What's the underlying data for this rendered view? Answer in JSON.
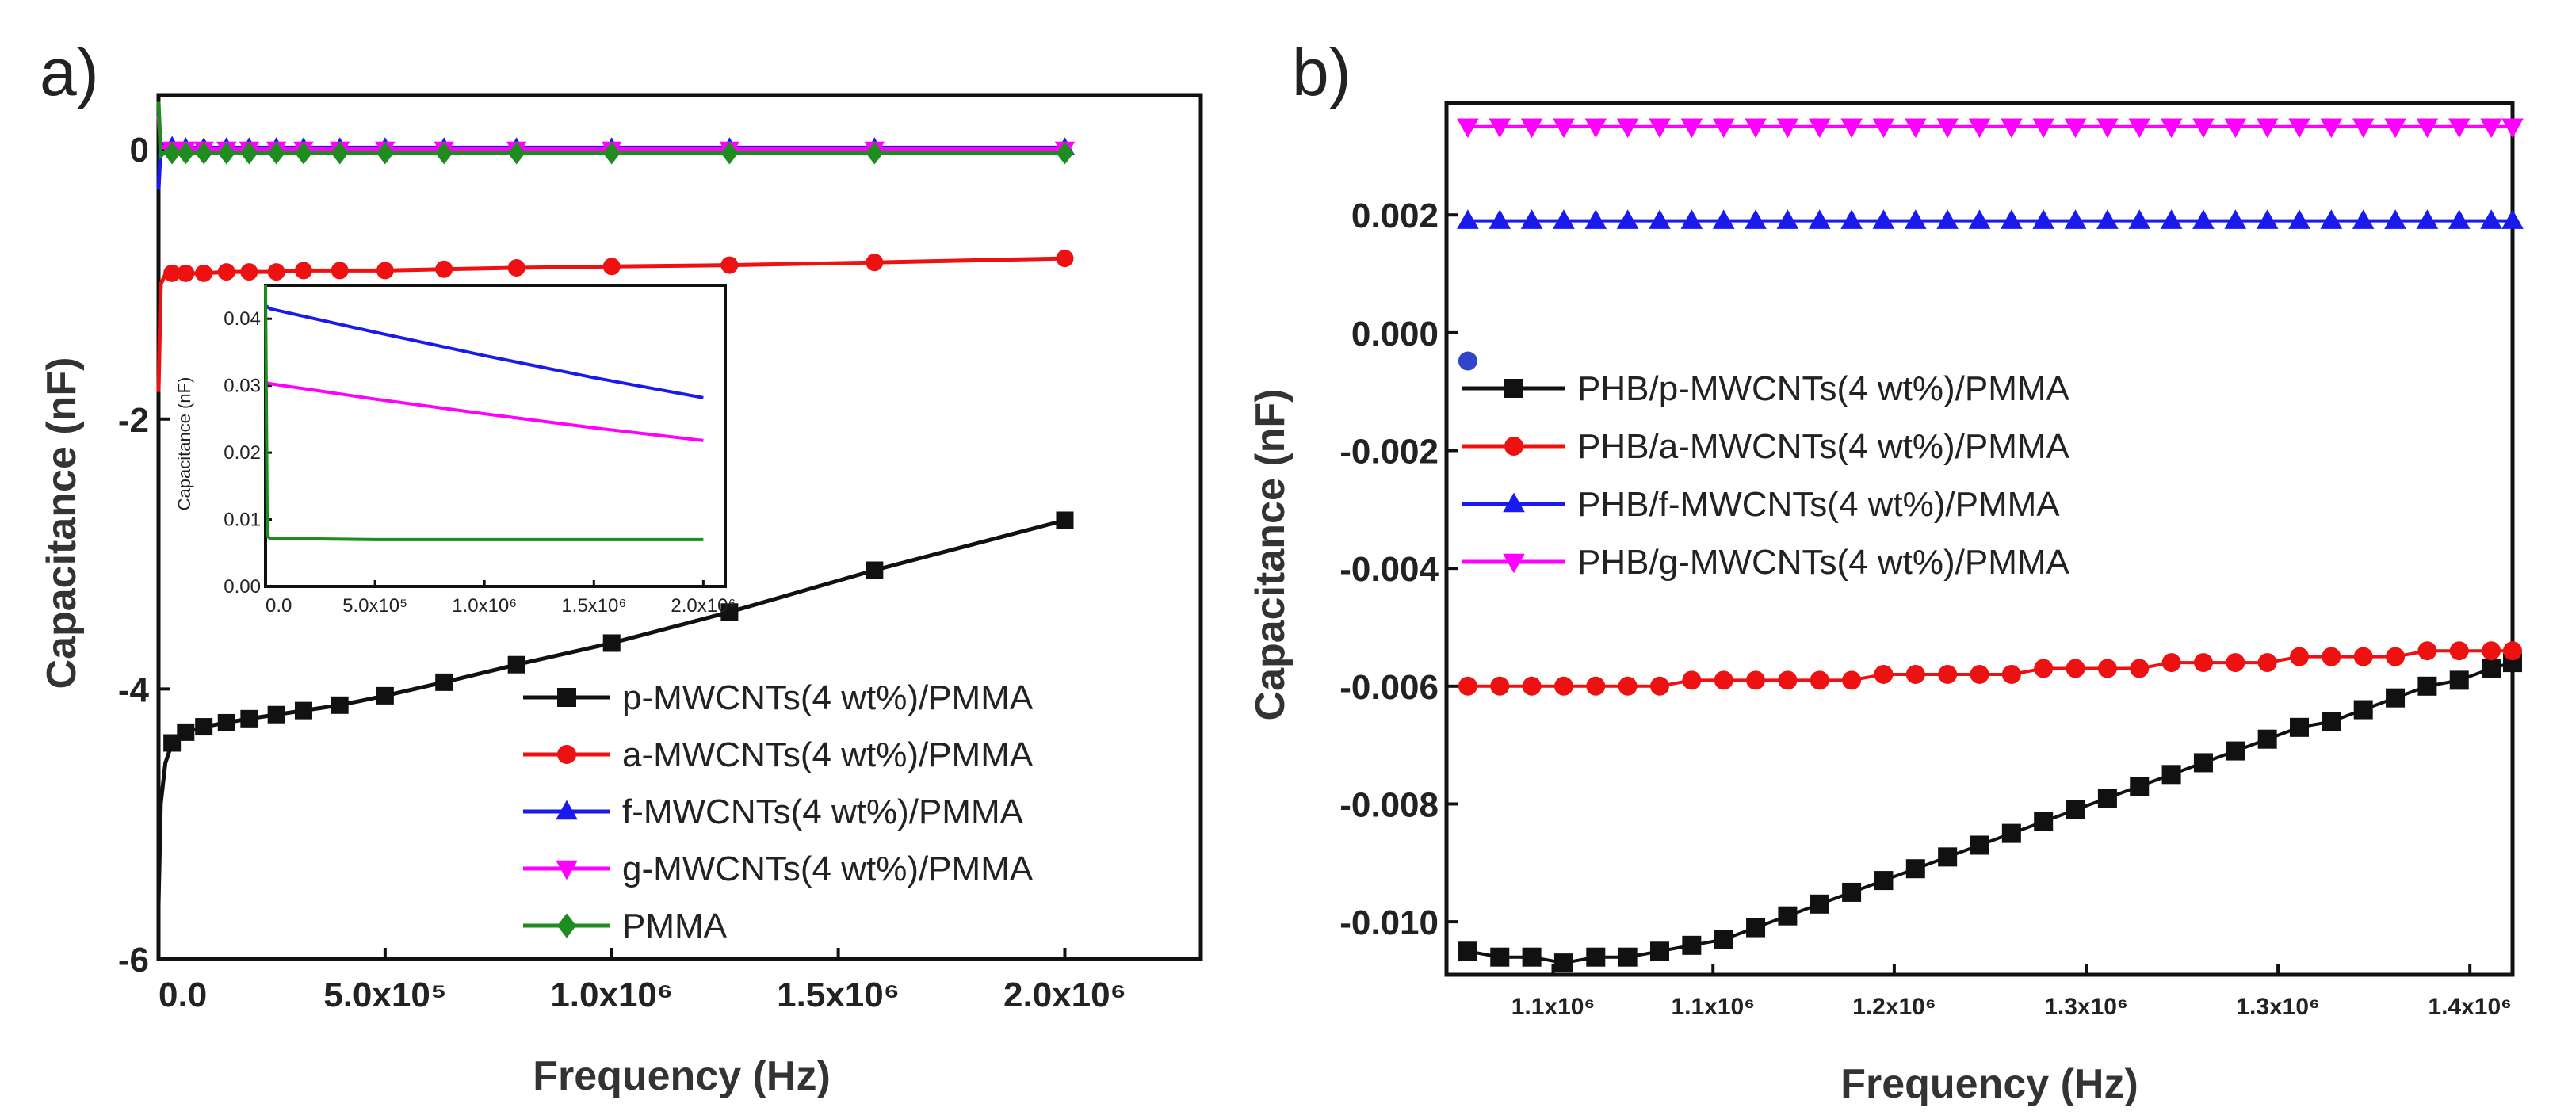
{
  "colors": {
    "black": "#111111",
    "red": "#ee1111",
    "blue": "#1a1aee",
    "magenta": "#ff00ff",
    "green": "#1f8c1f"
  },
  "chart_data": [
    {
      "panel": "a)",
      "type": "line",
      "xlabel": "Frequency (Hz)",
      "ylabel": "Capacitance (nF)",
      "xlim": [
        0,
        2300000
      ],
      "ylim": [
        -6,
        0.4
      ],
      "x_ticks": [
        {
          "value": 0,
          "label": "0.0"
        },
        {
          "value": 500000,
          "label": "5.0x10⁵"
        },
        {
          "value": 1000000,
          "label": "1.0x10⁶"
        },
        {
          "value": 1500000,
          "label": "1.5x10⁶"
        },
        {
          "value": 2000000,
          "label": "2.0x10⁶"
        }
      ],
      "y_ticks": [
        {
          "value": 0,
          "label": "0"
        },
        {
          "value": -2,
          "label": "-2"
        },
        {
          "value": -4,
          "label": "-4"
        },
        {
          "value": -6,
          "label": "-6"
        }
      ],
      "series": [
        {
          "name": "p-MWCNTs(4 wt%)/PMMA",
          "color": "#111111",
          "marker": "square",
          "x": [
            0,
            5000,
            15000,
            30000,
            60000,
            100000,
            150000,
            200000,
            260000,
            320000,
            400000,
            500000,
            630000,
            790000,
            1000000,
            1260000,
            1580000,
            2000000
          ],
          "y": [
            -5.6,
            -4.85,
            -4.55,
            -4.4,
            -4.32,
            -4.28,
            -4.25,
            -4.22,
            -4.19,
            -4.16,
            -4.12,
            -4.05,
            -3.95,
            -3.82,
            -3.66,
            -3.43,
            -3.12,
            -2.75
          ]
        },
        {
          "name": "a-MWCNTs(4 wt%)/PMMA",
          "color": "#ee1111",
          "marker": "circle",
          "x": [
            0,
            5000,
            15000,
            30000,
            60000,
            100000,
            150000,
            200000,
            260000,
            320000,
            400000,
            500000,
            630000,
            790000,
            1000000,
            1260000,
            1580000,
            2000000
          ],
          "y": [
            -1.8,
            -1.0,
            -0.93,
            -0.92,
            -0.92,
            -0.92,
            -0.91,
            -0.91,
            -0.91,
            -0.9,
            -0.9,
            -0.9,
            -0.89,
            -0.88,
            -0.87,
            -0.86,
            -0.84,
            -0.81
          ]
        },
        {
          "name": "f-MWCNTs(4 wt%)/PMMA",
          "color": "#1a1aee",
          "marker": "triangle-up",
          "x": [
            0,
            5000,
            15000,
            30000,
            60000,
            100000,
            150000,
            200000,
            260000,
            320000,
            400000,
            500000,
            630000,
            790000,
            1000000,
            1260000,
            1580000,
            2000000
          ],
          "y": [
            -0.3,
            0.04,
            0.03,
            0.02,
            0.01,
            0.01,
            0.01,
            0.01,
            0.01,
            0.01,
            0.01,
            0.01,
            0.01,
            0.01,
            0.01,
            0.01,
            0.01,
            0.01
          ]
        },
        {
          "name": "g-MWCNTs(4 wt%)/PMMA",
          "color": "#ff00ff",
          "marker": "triangle-down",
          "x": [
            0,
            5000,
            15000,
            30000,
            60000,
            100000,
            150000,
            200000,
            260000,
            320000,
            400000,
            500000,
            630000,
            790000,
            1000000,
            1260000,
            1580000,
            2000000
          ],
          "y": [
            0.25,
            0.02,
            0.01,
            0.0,
            0.0,
            0.0,
            0.0,
            0.0,
            0.0,
            0.0,
            0.0,
            0.0,
            0.0,
            0.0,
            0.0,
            0.0,
            0.0,
            0.0
          ]
        },
        {
          "name": "PMMA",
          "color": "#1f8c1f",
          "marker": "diamond",
          "x": [
            0,
            5000,
            15000,
            30000,
            60000,
            100000,
            150000,
            200000,
            260000,
            320000,
            400000,
            500000,
            630000,
            790000,
            1000000,
            1260000,
            1580000,
            2000000
          ],
          "y": [
            0.35,
            -0.05,
            -0.02,
            -0.03,
            -0.03,
            -0.03,
            -0.03,
            -0.03,
            -0.03,
            -0.03,
            -0.03,
            -0.03,
            -0.03,
            -0.03,
            -0.03,
            -0.03,
            -0.03,
            -0.03
          ]
        }
      ],
      "inset": {
        "ylabel": "Capacitance (nF)",
        "xlim": [
          0,
          2100000
        ],
        "ylim": [
          0,
          0.045
        ],
        "x_ticks": [
          {
            "value": 0,
            "label": "0.0"
          },
          {
            "value": 500000,
            "label": "5.0x10⁵"
          },
          {
            "value": 1000000,
            "label": "1.0x10⁶"
          },
          {
            "value": 1500000,
            "label": "1.5x10⁶"
          },
          {
            "value": 2000000,
            "label": "2.0x10⁶"
          }
        ],
        "y_ticks": [
          {
            "value": 0.0,
            "label": "0.00"
          },
          {
            "value": 0.01,
            "label": "0.01"
          },
          {
            "value": 0.02,
            "label": "0.02"
          },
          {
            "value": 0.03,
            "label": "0.03"
          },
          {
            "value": 0.04,
            "label": "0.04"
          }
        ],
        "series": [
          {
            "name": "f-MWCNTs(4 wt%)/PMMA",
            "color": "#1a1aee",
            "x": [
              0,
              20000,
              500000,
              1000000,
              1500000,
              2000000
            ],
            "y": [
              0.042,
              0.0415,
              0.038,
              0.0345,
              0.0312,
              0.0282
            ]
          },
          {
            "name": "g-MWCNTs(4 wt%)/PMMA",
            "color": "#ff00ff",
            "x": [
              0,
              20000,
              500000,
              1000000,
              1500000,
              2000000
            ],
            "y": [
              0.0305,
              0.0303,
              0.028,
              0.0258,
              0.0237,
              0.0218
            ]
          },
          {
            "name": "PMMA",
            "color": "#1f8c1f",
            "x": [
              0,
              8000,
              20000,
              500000,
              1000000,
              1500000,
              2000000
            ],
            "y": [
              0.045,
              0.0075,
              0.0072,
              0.007,
              0.007,
              0.007,
              0.007
            ]
          }
        ]
      }
    },
    {
      "panel": "b)",
      "type": "line",
      "xlabel": "Frequency (Hz)",
      "ylabel": "Capacitance (nF)",
      "xlim": [
        0,
        1
      ],
      "ylim": [
        -0.0109,
        0.0039
      ],
      "x_ticks": [
        {
          "value": 0.1,
          "label": "1.1x10⁶"
        },
        {
          "value": 0.25,
          "label": "1.1x10⁶"
        },
        {
          "value": 0.42,
          "label": "1.2x10⁶"
        },
        {
          "value": 0.6,
          "label": "1.3x10⁶"
        },
        {
          "value": 0.78,
          "label": "1.3x10⁶"
        },
        {
          "value": 0.96,
          "label": "1.4x10⁶"
        }
      ],
      "y_ticks": [
        {
          "value": 0.002,
          "label": "0.002"
        },
        {
          "value": 0.0,
          "label": "0.000"
        },
        {
          "value": -0.002,
          "label": "-0.002"
        },
        {
          "value": -0.004,
          "label": "-0.004"
        },
        {
          "value": -0.006,
          "label": "-0.006"
        },
        {
          "value": -0.008,
          "label": "-0.008"
        },
        {
          "value": -0.01,
          "label": "-0.010"
        }
      ],
      "series": [
        {
          "name": "PHB/p-MWCNTs(4 wt%)/PMMA",
          "color": "#111111",
          "marker": "square",
          "x": [
            0.02,
            0.05,
            0.08,
            0.11,
            0.14,
            0.17,
            0.2,
            0.23,
            0.26,
            0.29,
            0.32,
            0.35,
            0.38,
            0.41,
            0.44,
            0.47,
            0.5,
            0.53,
            0.56,
            0.59,
            0.62,
            0.65,
            0.68,
            0.71,
            0.74,
            0.77,
            0.8,
            0.83,
            0.86,
            0.89,
            0.92,
            0.95,
            0.98,
            1.0
          ],
          "y": [
            -0.0105,
            -0.0106,
            -0.0106,
            -0.0107,
            -0.0106,
            -0.0106,
            -0.0105,
            -0.0104,
            -0.0103,
            -0.0101,
            -0.0099,
            -0.0097,
            -0.0095,
            -0.0093,
            -0.0091,
            -0.0089,
            -0.0087,
            -0.0085,
            -0.0083,
            -0.0081,
            -0.0079,
            -0.0077,
            -0.0075,
            -0.0073,
            -0.0071,
            -0.0069,
            -0.0067,
            -0.0066,
            -0.0064,
            -0.0062,
            -0.006,
            -0.0059,
            -0.0057,
            -0.0056
          ]
        },
        {
          "name": "PHB/a-MWCNTs(4 wt%)/PMMA",
          "color": "#ee1111",
          "marker": "circle",
          "x": [
            0.02,
            0.05,
            0.08,
            0.11,
            0.14,
            0.17,
            0.2,
            0.23,
            0.26,
            0.29,
            0.32,
            0.35,
            0.38,
            0.41,
            0.44,
            0.47,
            0.5,
            0.53,
            0.56,
            0.59,
            0.62,
            0.65,
            0.68,
            0.71,
            0.74,
            0.77,
            0.8,
            0.83,
            0.86,
            0.89,
            0.92,
            0.95,
            0.98,
            1.0
          ],
          "y": [
            -0.006,
            -0.006,
            -0.006,
            -0.006,
            -0.006,
            -0.006,
            -0.006,
            -0.0059,
            -0.0059,
            -0.0059,
            -0.0059,
            -0.0059,
            -0.0059,
            -0.0058,
            -0.0058,
            -0.0058,
            -0.0058,
            -0.0058,
            -0.0057,
            -0.0057,
            -0.0057,
            -0.0057,
            -0.0056,
            -0.0056,
            -0.0056,
            -0.0056,
            -0.0055,
            -0.0055,
            -0.0055,
            -0.0055,
            -0.0054,
            -0.0054,
            -0.0054,
            -0.0054
          ]
        },
        {
          "name": "PHB/f-MWCNTs(4 wt%)/PMMA",
          "color": "#1a1aee",
          "marker": "triangle-up",
          "x": [
            0.02,
            0.05,
            0.08,
            0.11,
            0.14,
            0.17,
            0.2,
            0.23,
            0.26,
            0.29,
            0.32,
            0.35,
            0.38,
            0.41,
            0.44,
            0.47,
            0.5,
            0.53,
            0.56,
            0.59,
            0.62,
            0.65,
            0.68,
            0.71,
            0.74,
            0.77,
            0.8,
            0.83,
            0.86,
            0.89,
            0.92,
            0.95,
            0.98,
            1.0
          ],
          "y": [
            0.0019,
            0.0019,
            0.0019,
            0.0019,
            0.0019,
            0.0019,
            0.0019,
            0.0019,
            0.0019,
            0.0019,
            0.0019,
            0.0019,
            0.0019,
            0.0019,
            0.0019,
            0.0019,
            0.0019,
            0.0019,
            0.0019,
            0.0019,
            0.0019,
            0.0019,
            0.0019,
            0.0019,
            0.0019,
            0.0019,
            0.0019,
            0.0019,
            0.0019,
            0.0019,
            0.0019,
            0.0019,
            0.0019,
            0.0019
          ]
        },
        {
          "name": "PHB/g-MWCNTs(4 wt%)/PMMA",
          "color": "#ff00ff",
          "marker": "triangle-down",
          "x": [
            0.02,
            0.05,
            0.08,
            0.11,
            0.14,
            0.17,
            0.2,
            0.23,
            0.26,
            0.29,
            0.32,
            0.35,
            0.38,
            0.41,
            0.44,
            0.47,
            0.5,
            0.53,
            0.56,
            0.59,
            0.62,
            0.65,
            0.68,
            0.71,
            0.74,
            0.77,
            0.8,
            0.83,
            0.86,
            0.89,
            0.92,
            0.95,
            0.98,
            1.0
          ],
          "y": [
            0.0035,
            0.0035,
            0.0035,
            0.0035,
            0.0035,
            0.0035,
            0.0035,
            0.0035,
            0.0035,
            0.0035,
            0.0035,
            0.0035,
            0.0035,
            0.0035,
            0.0035,
            0.0035,
            0.0035,
            0.0035,
            0.0035,
            0.0035,
            0.0035,
            0.0035,
            0.0035,
            0.0035,
            0.0035,
            0.0035,
            0.0035,
            0.0035,
            0.0035,
            0.0035,
            0.0035,
            0.0035,
            0.0035,
            0.0035
          ]
        }
      ],
      "outlier_point": {
        "x": 0.02,
        "y": -0.00048,
        "color": "#3344cc"
      }
    }
  ]
}
